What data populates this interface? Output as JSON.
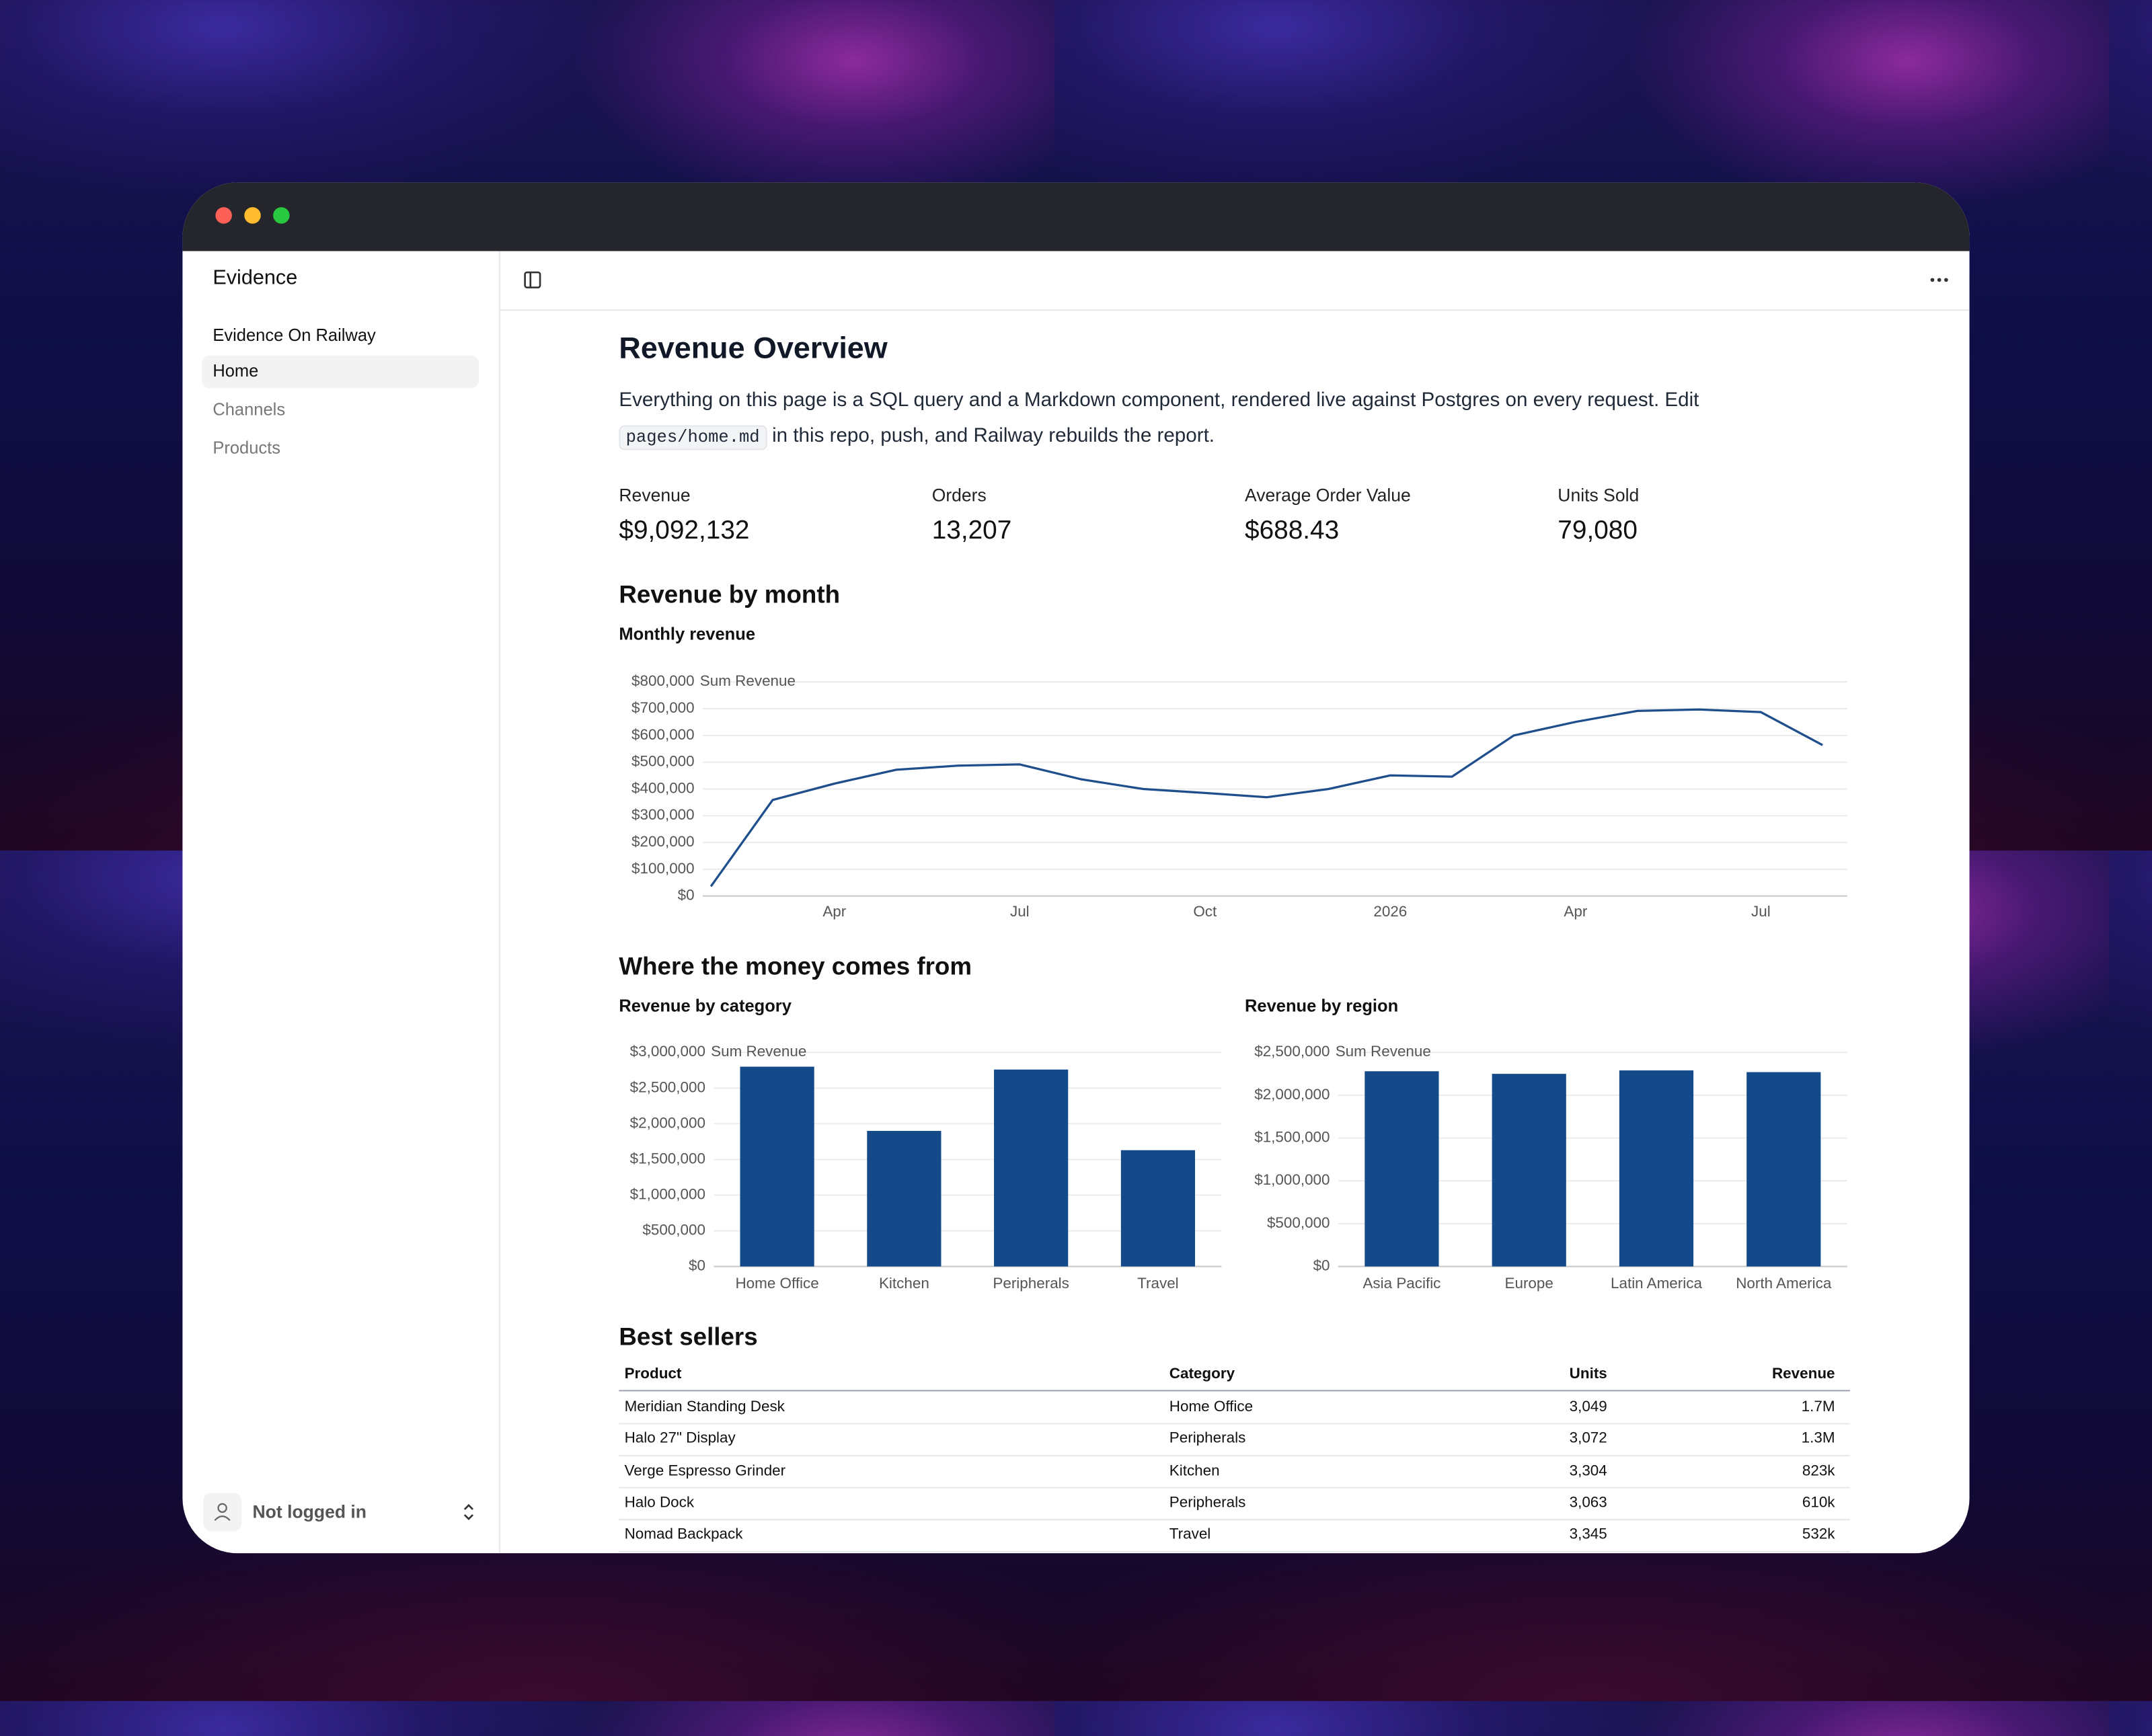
{
  "window": {
    "app_name": "Evidence"
  },
  "sidebar": {
    "section": "Evidence On Railway",
    "items": [
      "Home",
      "Channels",
      "Products"
    ],
    "user": "Not logged in"
  },
  "page": {
    "title": "Revenue Overview",
    "intro": {
      "before": "Everything on this page is a SQL query and a Markdown component, rendered live against Postgres on every request. Edit ",
      "code": "pages/home.md",
      "after": " in this repo, push, and Railway rebuilds the report."
    }
  },
  "kpis": [
    {
      "label": "Revenue",
      "value": "$9,092,132"
    },
    {
      "label": "Orders",
      "value": "13,207"
    },
    {
      "label": "Average Order Value",
      "value": "$688.43"
    },
    {
      "label": "Units Sold",
      "value": "79,080"
    }
  ],
  "sections": [
    "Revenue by month",
    "Where the money comes from",
    "Best sellers"
  ],
  "chart_data": [
    {
      "type": "line",
      "title": "Monthly revenue",
      "y_label": "Sum Revenue",
      "color": "#1f4e8c",
      "categories": [
        null,
        null,
        "Apr",
        null,
        null,
        "Jul",
        null,
        null,
        "Oct",
        null,
        null,
        "2026",
        null,
        null,
        "Apr",
        null,
        null,
        "Jul",
        null
      ],
      "values": [
        36000,
        359000,
        420000,
        472000,
        487000,
        492000,
        436000,
        400000,
        385000,
        369000,
        400000,
        451000,
        446000,
        600000,
        651000,
        692000,
        697000,
        687000,
        564000
      ],
      "ylim": [
        0,
        800000
      ],
      "yticks": [
        {
          "value": 0,
          "label": "$0"
        },
        {
          "value": 100000,
          "label": "$100,000"
        },
        {
          "value": 200000,
          "label": "$200,000"
        },
        {
          "value": 300000,
          "label": "$300,000"
        },
        {
          "value": 400000,
          "label": "$400,000"
        },
        {
          "value": 500000,
          "label": "$500,000"
        },
        {
          "value": 600000,
          "label": "$600,000"
        },
        {
          "value": 700000,
          "label": "$700,000"
        },
        {
          "value": 800000,
          "label": "$800,000"
        }
      ],
      "grid": true
    },
    {
      "type": "bar",
      "title": "Revenue by category",
      "y_label": "Sum Revenue",
      "color": "#154a8a",
      "categories": [
        "Home Office",
        "Kitchen",
        "Peripherals",
        "Travel"
      ],
      "values": [
        2800000,
        1900000,
        2760000,
        1630000
      ],
      "ylim": [
        0,
        3000000
      ],
      "yticks": [
        {
          "value": 0,
          "label": "$0"
        },
        {
          "value": 500000,
          "label": "$500,000"
        },
        {
          "value": 1000000,
          "label": "$1,000,000"
        },
        {
          "value": 1500000,
          "label": "$1,500,000"
        },
        {
          "value": 2000000,
          "label": "$2,000,000"
        },
        {
          "value": 2500000,
          "label": "$2,500,000"
        },
        {
          "value": 3000000,
          "label": "$3,000,000"
        }
      ],
      "grid": true
    },
    {
      "type": "bar",
      "title": "Revenue by region",
      "y_label": "Sum Revenue",
      "color": "#154a8a",
      "categories": [
        "Asia Pacific",
        "Europe",
        "Latin America",
        "North America"
      ],
      "values": [
        2280000,
        2250000,
        2290000,
        2270000
      ],
      "ylim": [
        0,
        2500000
      ],
      "yticks": [
        {
          "value": 0,
          "label": "$0"
        },
        {
          "value": 500000,
          "label": "$500,000"
        },
        {
          "value": 1000000,
          "label": "$1,000,000"
        },
        {
          "value": 1500000,
          "label": "$1,500,000"
        },
        {
          "value": 2000000,
          "label": "$2,000,000"
        },
        {
          "value": 2500000,
          "label": "$2,500,000"
        }
      ],
      "grid": true
    }
  ],
  "table": {
    "columns": [
      "Product",
      "Category",
      "Units",
      "Revenue"
    ],
    "rows": [
      [
        "Meridian Standing Desk",
        "Home Office",
        "3,049",
        "1.7M"
      ],
      [
        "Halo 27\" Display",
        "Peripherals",
        "3,072",
        "1.3M"
      ],
      [
        "Verge Espresso Grinder",
        "Kitchen",
        "3,304",
        "823k"
      ],
      [
        "Halo Dock",
        "Peripherals",
        "3,063",
        "610k"
      ],
      [
        "Nomad Backpack",
        "Travel",
        "3,345",
        "532k"
      ]
    ]
  }
}
